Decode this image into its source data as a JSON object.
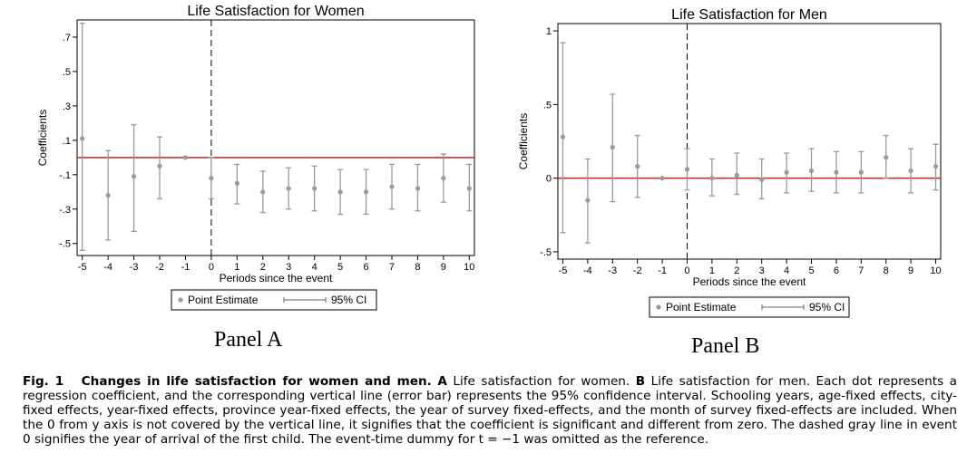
{
  "chart_data": [
    {
      "type": "scatter",
      "title": "Life Satisfaction for Women",
      "xlabel": "Periods since the event",
      "ylabel": "Coefficients",
      "xlim": [
        -5.2,
        10.2
      ],
      "ylim": [
        -0.57,
        0.8
      ],
      "x_ticks": [
        -5,
        -4,
        -3,
        -2,
        -1,
        0,
        1,
        2,
        3,
        4,
        5,
        6,
        7,
        8,
        9,
        10
      ],
      "y_ticks": [
        0.7,
        0.5,
        0.3,
        0.1,
        -0.1,
        -0.3,
        -0.5
      ],
      "y_tick_labels": [
        ".7",
        ".5",
        ".3",
        ".1",
        "-.1",
        "-.3",
        "-.5"
      ],
      "reference_line_y": 0,
      "event_line_x": 0,
      "x": [
        -5,
        -4,
        -3,
        -2,
        -1,
        0,
        1,
        2,
        3,
        4,
        5,
        6,
        7,
        8,
        9,
        10
      ],
      "estimate": [
        0.11,
        -0.22,
        -0.11,
        -0.05,
        0.0,
        -0.12,
        -0.15,
        -0.2,
        -0.18,
        -0.18,
        -0.2,
        -0.2,
        -0.17,
        -0.18,
        -0.12,
        -0.18
      ],
      "ci_low": [
        -0.54,
        -0.48,
        -0.43,
        -0.24,
        0.0,
        -0.24,
        -0.27,
        -0.32,
        -0.3,
        -0.31,
        -0.33,
        -0.33,
        -0.3,
        -0.31,
        -0.26,
        -0.31
      ],
      "ci_high": [
        0.78,
        0.04,
        0.19,
        0.12,
        0.0,
        0.0,
        -0.04,
        -0.08,
        -0.06,
        -0.05,
        -0.07,
        -0.07,
        -0.04,
        -0.04,
        0.02,
        -0.04
      ],
      "legend": {
        "point_label": "Point Estimate",
        "ci_label": "95% CI",
        "position": "bottom"
      }
    },
    {
      "type": "scatter",
      "title": "Life Satisfaction for Men",
      "xlabel": "Periods since the event",
      "ylabel": "Coefficients",
      "xlim": [
        -5.2,
        10.2
      ],
      "ylim": [
        -0.55,
        1.05
      ],
      "x_ticks": [
        -5,
        -4,
        -3,
        -2,
        -1,
        0,
        1,
        2,
        3,
        4,
        5,
        6,
        7,
        8,
        9,
        10
      ],
      "y_ticks": [
        1,
        0.5,
        0,
        -0.5
      ],
      "y_tick_labels": [
        "1",
        ".5",
        "0",
        "-.5"
      ],
      "reference_line_y": 0,
      "event_line_x": 0,
      "x": [
        -5,
        -4,
        -3,
        -2,
        -1,
        0,
        1,
        2,
        3,
        4,
        5,
        6,
        7,
        8,
        9,
        10
      ],
      "estimate": [
        0.28,
        -0.15,
        0.21,
        0.08,
        0.0,
        0.06,
        0.0,
        0.02,
        -0.01,
        0.04,
        0.05,
        0.04,
        0.04,
        0.14,
        0.05,
        0.08
      ],
      "ci_low": [
        -0.37,
        -0.44,
        -0.16,
        -0.13,
        0.0,
        -0.08,
        -0.12,
        -0.11,
        -0.14,
        -0.1,
        -0.09,
        -0.1,
        -0.1,
        0.0,
        -0.1,
        -0.08
      ],
      "ci_high": [
        0.92,
        0.13,
        0.57,
        0.29,
        0.0,
        0.2,
        0.13,
        0.17,
        0.13,
        0.17,
        0.2,
        0.18,
        0.18,
        0.29,
        0.2,
        0.23
      ],
      "legend": {
        "point_label": "Point Estimate",
        "ci_label": "95% CI",
        "position": "bottom"
      }
    }
  ],
  "panel_captions": [
    "Panel A",
    "Panel B"
  ],
  "caption": {
    "label": "Fig. 1",
    "title": "Changes in life satisfaction for women and men.",
    "part_a_label": "A",
    "part_a_text": "Life satisfaction for women.",
    "part_b_label": "B",
    "part_b_text": "Life satisfaction for men. Each dot represents a regression coefficient, and the corresponding vertical line (error bar) represents the 95% confidence interval. Schooling years, age-fixed effects, city-fixed effects, year-fixed effects, province year-fixed effects, the year of survey fixed-effects, and the month of survey fixed-effects are included. When the 0 from y axis is not covered by the vertical line, it signifies that the coefficient is significant and different from zero. The dashed gray line in event 0 signifies the year of arrival of the first child. The event-time dummy for t = −1 was omitted as the reference."
  },
  "colors": {
    "reference_line": "#cc2222",
    "marker": "#9a9a9a",
    "error_bar": "#9a9a9a",
    "axis": "#000000"
  }
}
